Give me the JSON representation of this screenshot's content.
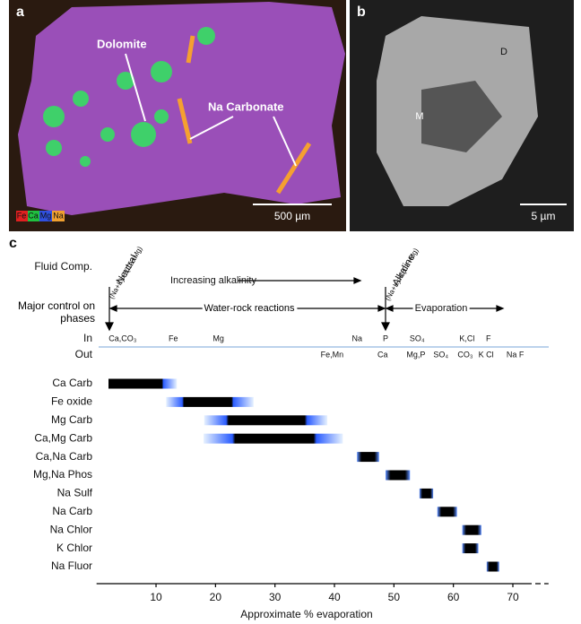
{
  "panel_a": {
    "label": "a",
    "annotations": [
      "Dolomite",
      "Na Carbonate"
    ],
    "scale_bar": "500 µm",
    "legend": [
      "Fe",
      "Ca",
      "Mg",
      "Na"
    ]
  },
  "panel_b": {
    "label": "b",
    "annotations": [
      "D",
      "M"
    ],
    "scale_bar": "5 µm"
  },
  "chart_data": {
    "type": "range",
    "panel_label": "c",
    "x_label": "Approximate % evaporation",
    "xlim": [
      0,
      76
    ],
    "xticks": [
      10,
      20,
      30,
      40,
      50,
      60,
      70
    ],
    "row_titles": {
      "fluid": "Fluid Comp.",
      "control": "Major control on phases",
      "in": "In",
      "out": "Out"
    },
    "fluid_annotations": {
      "neutral": "Neutral",
      "neutral_ratio": "(Na+K)>2(Ca+Mg)",
      "alkaline": "Alkaline",
      "alkaline_ratio": "(Na+K)>2(Ca+Mg)",
      "trend": "Increasing alkalinity"
    },
    "control_annotations": {
      "water_rock": "Water-rock reactions",
      "evaporation": "Evaporation"
    },
    "in": [
      {
        "label": "Ca,CO₃",
        "x": 4.4
      },
      {
        "label": "Fe",
        "x": 12.9
      },
      {
        "label": "Mg",
        "x": 20.5
      },
      {
        "label": "Na",
        "x": 43.8
      },
      {
        "label": "P",
        "x": 48.6
      },
      {
        "label": "SO₄",
        "x": 53.9
      },
      {
        "label": "K,Cl",
        "x": 62.3
      },
      {
        "label": "F",
        "x": 65.9
      }
    ],
    "out": [
      {
        "label": "Fe,Mn",
        "x": 39.6
      },
      {
        "label": "Ca",
        "x": 48.1
      },
      {
        "label": "Mg,P",
        "x": 53.7
      },
      {
        "label": "SO₄",
        "x": 57.9
      },
      {
        "label": "CO₃",
        "x": 62
      },
      {
        "label": "K Cl",
        "x": 65.5
      },
      {
        "label": "Na F",
        "x": 70.4
      }
    ],
    "rows": [
      {
        "name": "Ca Carb",
        "range": [
          2,
          13.5
        ],
        "core": [
          2,
          11
        ]
      },
      {
        "name": "Fe oxide",
        "range": [
          11.7,
          26.4
        ],
        "core": [
          14.7,
          22.7
        ]
      },
      {
        "name": "Mg Carb",
        "range": [
          18.1,
          38.8
        ],
        "core": [
          22.2,
          35
        ]
      },
      {
        "name": "Ca,Mg Carb",
        "range": [
          18,
          41.4
        ],
        "core": [
          23.3,
          36.5
        ]
      },
      {
        "name": "Ca,Na Carb",
        "range": [
          43.8,
          47.5
        ]
      },
      {
        "name": "Mg,Na Phos",
        "range": [
          48.6,
          52.7
        ]
      },
      {
        "name": "Na Sulf",
        "range": [
          54.3,
          56.6
        ]
      },
      {
        "name": "Na Carb",
        "range": [
          57.3,
          60.6
        ]
      },
      {
        "name": "Na Chlor",
        "range": [
          61.5,
          64.7
        ]
      },
      {
        "name": "K Chlor",
        "range": [
          61.5,
          64.2
        ]
      },
      {
        "name": "Na Fluor",
        "range": [
          65.6,
          67.7
        ]
      }
    ]
  }
}
